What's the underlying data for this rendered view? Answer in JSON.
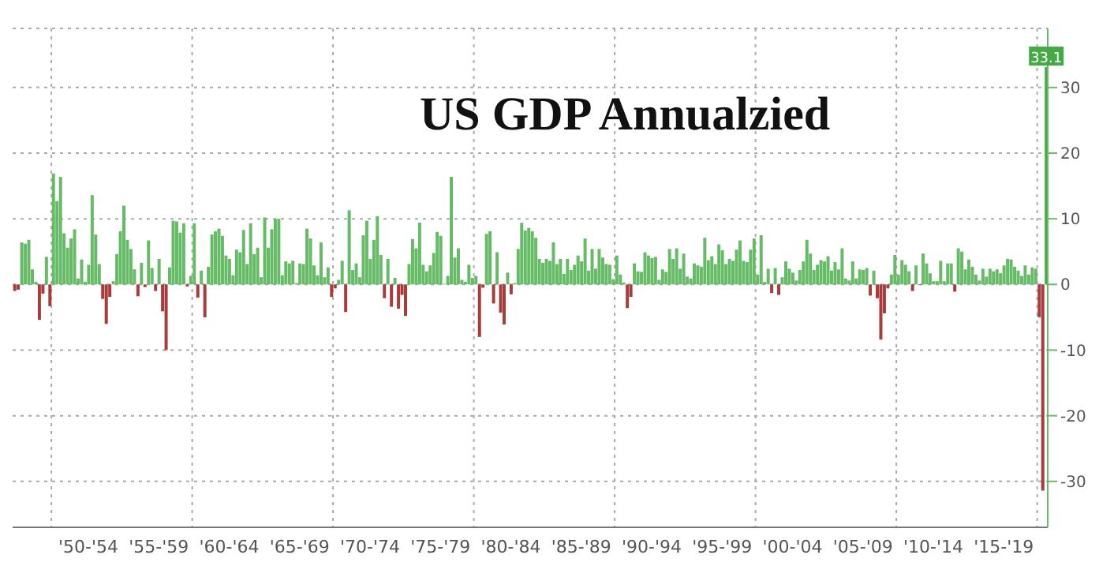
{
  "chart_data": {
    "type": "bar",
    "title": "US GDP Annualzied",
    "categories": [
      null,
      null,
      null,
      null,
      null,
      null,
      null,
      null,
      null,
      null,
      null,
      null,
      null,
      null,
      null,
      null,
      null,
      null,
      null,
      null,
      null,
      "'50-'54",
      null,
      null,
      null,
      null,
      null,
      null,
      null,
      null,
      null,
      null,
      null,
      null,
      null,
      null,
      null,
      null,
      null,
      null,
      null,
      "'55-'59",
      null,
      null,
      null,
      null,
      null,
      null,
      null,
      null,
      null,
      null,
      null,
      null,
      null,
      null,
      null,
      null,
      null,
      null,
      null,
      "'60-'64",
      null,
      null,
      null,
      null,
      null,
      null,
      null,
      null,
      null,
      null,
      null,
      null,
      null,
      null,
      null,
      null,
      null,
      null,
      null,
      "'65-'69",
      null,
      null,
      null,
      null,
      null,
      null,
      null,
      null,
      null,
      null,
      null,
      null,
      null,
      null,
      null,
      null,
      null,
      null,
      null,
      "'70-'74",
      null,
      null,
      null,
      null,
      null,
      null,
      null,
      null,
      null,
      null,
      null,
      null,
      null,
      null,
      null,
      null,
      null,
      null,
      null,
      "'75-'79",
      null,
      null,
      null,
      null,
      null,
      null,
      null,
      null,
      null,
      null,
      null,
      null,
      null,
      null,
      null,
      null,
      null,
      null,
      null,
      "'80-'84",
      null,
      null,
      null,
      null,
      null,
      null,
      null,
      null,
      null,
      null,
      null,
      null,
      null,
      null,
      null,
      null,
      null,
      null,
      null,
      "'85-'89",
      null,
      null,
      null,
      null,
      null,
      null,
      null,
      null,
      null,
      null,
      null,
      null,
      null,
      null,
      null,
      null,
      null,
      null,
      null,
      "'90-'94",
      null,
      null,
      null,
      null,
      null,
      null,
      null,
      null,
      null,
      null,
      null,
      null,
      null,
      null,
      null,
      null,
      null,
      null,
      null,
      "'95-'99",
      null,
      null,
      null,
      null,
      null,
      null,
      null,
      null,
      null,
      null,
      null,
      null,
      null,
      null,
      null,
      null,
      null,
      null,
      null,
      "'00-'04",
      null,
      null,
      null,
      null,
      null,
      null,
      null,
      null,
      null,
      null,
      null,
      null,
      null,
      null,
      null,
      null,
      null,
      null,
      null,
      "'05-'09",
      null,
      null,
      null,
      null,
      null,
      null,
      null,
      null,
      null,
      null,
      null,
      null,
      null,
      null,
      null,
      null,
      null,
      null,
      null,
      "'10-'14",
      null,
      null,
      null,
      null,
      null,
      null,
      null,
      null,
      null,
      null,
      null,
      null,
      null,
      null,
      null,
      null,
      null,
      null,
      null,
      "'15-'19",
      null,
      null,
      null,
      null,
      null,
      null,
      null,
      null,
      null,
      null,
      null,
      null
    ],
    "values": [
      -1.0,
      -0.8,
      6.4,
      6.2,
      6.8,
      2.3,
      0.4,
      -5.4,
      -1.4,
      4.2,
      -3.3,
      16.9,
      12.7,
      16.4,
      7.8,
      5.6,
      7.0,
      8.4,
      0.9,
      3.8,
      0.4,
      3.0,
      13.6,
      7.6,
      3.1,
      -2.2,
      -6.0,
      -1.9,
      0.5,
      4.6,
      8.1,
      12.0,
      6.8,
      5.4,
      2.3,
      -1.8,
      3.3,
      -0.4,
      6.7,
      2.5,
      -1.0,
      3.9,
      -4.1,
      -10.0,
      2.6,
      9.7,
      9.6,
      7.9,
      9.3,
      -0.3,
      1.3,
      9.3,
      -2.0,
      2.1,
      -5.0,
      2.7,
      7.6,
      8.1,
      8.5,
      7.4,
      4.4,
      3.9,
      1.4,
      5.3,
      4.9,
      8.3,
      3.1,
      9.3,
      4.6,
      5.6,
      1.1,
      10.2,
      5.6,
      8.4,
      10.0,
      10.0,
      1.4,
      3.5,
      3.2,
      3.6,
      0.2,
      3.2,
      3.1,
      8.5,
      7.0,
      2.9,
      1.4,
      6.4,
      1.1,
      2.6,
      -1.9,
      -0.6,
      0.7,
      3.6,
      -4.2,
      11.3,
      2.2,
      3.2,
      1.1,
      7.5,
      9.7,
      3.9,
      6.8,
      10.4,
      4.5,
      -2.1,
      3.9,
      -3.4,
      1.0,
      -3.7,
      -1.6,
      -4.8,
      3.1,
      6.9,
      5.5,
      9.4,
      3.0,
      2.0,
      2.9,
      4.8,
      8.0,
      7.4,
      0.1,
      1.3,
      16.4,
      4.1,
      5.5,
      0.7,
      0.4,
      3.0,
      1.0,
      1.3,
      -8.0,
      -0.5,
      7.7,
      8.1,
      -2.9,
      4.9,
      -4.3,
      -6.1,
      1.8,
      -1.5,
      0.2,
      5.4,
      9.4,
      8.2,
      8.6,
      8.1,
      7.1,
      3.9,
      3.3,
      3.9,
      3.6,
      6.4,
      3.1,
      3.9,
      1.6,
      3.9,
      2.2,
      3.0,
      4.4,
      3.5,
      7.0,
      2.1,
      5.4,
      2.4,
      5.4,
      4.1,
      3.1,
      3.0,
      0.8,
      4.4,
      1.5,
      0.3,
      -3.6,
      -1.9,
      3.2,
      2.0,
      1.9,
      4.9,
      4.4,
      4.0,
      4.2,
      0.7,
      2.3,
      1.9,
      5.4,
      3.9,
      5.5,
      2.4,
      4.7,
      1.2,
      0.9,
      3.2,
      2.9,
      2.7,
      7.1,
      3.7,
      4.3,
      3.1,
      6.1,
      5.2,
      3.1,
      3.9,
      3.6,
      5.3,
      6.7,
      3.6,
      3.4,
      5.3,
      7.0,
      1.5,
      7.5,
      0.4,
      2.4,
      -1.3,
      2.5,
      -1.6,
      1.1,
      3.5,
      2.4,
      1.8,
      0.6,
      2.2,
      3.5,
      6.8,
      4.7,
      2.2,
      3.0,
      3.7,
      3.5,
      4.3,
      2.1,
      3.4,
      2.3,
      5.5,
      0.9,
      0.6,
      3.5,
      0.9,
      2.3,
      2.2,
      2.5,
      -1.7,
      2.1,
      -2.1,
      -8.4,
      -4.4,
      -0.6,
      1.5,
      4.5,
      1.5,
      3.7,
      3.0,
      2.0,
      -1.0,
      2.9,
      -0.1,
      4.7,
      3.2,
      1.7,
      0.5,
      0.5,
      3.6,
      0.5,
      3.2,
      3.2,
      -1.1,
      5.5,
      5.0,
      2.3,
      3.8,
      2.7,
      1.5,
      0.6,
      2.4,
      1.2,
      2.4,
      2.0,
      2.3,
      1.7,
      2.9,
      3.9,
      3.8,
      2.7,
      2.1,
      1.3,
      2.9,
      1.5,
      2.6,
      2.4,
      -5.0,
      -31.4,
      33.1
    ],
    "colors": [
      "#a83c3c",
      "#a83c3c",
      "#66bb66",
      "#66bb66",
      "#66bb66",
      "#66bb66",
      "#66bb66",
      "#a83c3c",
      "#a83c3c",
      "#66bb66",
      "#a83c3c",
      "#66bb66",
      "#66bb66",
      "#66bb66",
      "#66bb66",
      "#66bb66",
      "#66bb66",
      "#66bb66",
      "#66bb66",
      "#66bb66",
      "#66bb66",
      "#66bb66",
      "#66bb66",
      "#66bb66",
      "#66bb66",
      "#a83c3c",
      "#a83c3c",
      "#a83c3c",
      "#66bb66",
      "#66bb66",
      "#66bb66",
      "#66bb66",
      "#66bb66",
      "#66bb66",
      "#66bb66",
      "#a83c3c",
      "#66bb66",
      "#a83c3c",
      "#66bb66",
      "#66bb66",
      "#a83c3c",
      "#66bb66",
      "#a83c3c",
      "#a83c3c",
      "#66bb66",
      "#66bb66",
      "#66bb66",
      "#66bb66",
      "#66bb66",
      "#a83c3c",
      "#66bb66",
      "#66bb66",
      "#a83c3c",
      "#66bb66",
      "#a83c3c",
      "#66bb66",
      "#66bb66",
      "#66bb66",
      "#66bb66",
      "#66bb66",
      "#66bb66",
      "#66bb66",
      "#66bb66",
      "#66bb66",
      "#66bb66",
      "#66bb66",
      "#66bb66",
      "#66bb66",
      "#66bb66",
      "#66bb66",
      "#66bb66",
      "#66bb66",
      "#66bb66",
      "#66bb66",
      "#66bb66",
      "#66bb66",
      "#66bb66",
      "#66bb66",
      "#66bb66",
      "#66bb66",
      "#66bb66",
      "#66bb66",
      "#66bb66",
      "#66bb66",
      "#66bb66",
      "#66bb66",
      "#66bb66",
      "#66bb66",
      "#66bb66",
      "#66bb66",
      "#a83c3c",
      "#a83c3c",
      "#66bb66",
      "#66bb66",
      "#a83c3c",
      "#66bb66",
      "#66bb66",
      "#66bb66",
      "#66bb66",
      "#66bb66",
      "#66bb66",
      "#66bb66",
      "#66bb66",
      "#66bb66",
      "#66bb66",
      "#a83c3c",
      "#66bb66",
      "#a83c3c",
      "#66bb66",
      "#a83c3c",
      "#a83c3c",
      "#a83c3c",
      "#66bb66",
      "#66bb66",
      "#66bb66",
      "#66bb66",
      "#66bb66",
      "#66bb66",
      "#66bb66",
      "#66bb66",
      "#66bb66",
      "#66bb66",
      "#66bb66",
      "#66bb66",
      "#66bb66",
      "#66bb66",
      "#66bb66",
      "#66bb66",
      "#66bb66",
      "#66bb66",
      "#66bb66",
      "#66bb66",
      "#a83c3c",
      "#a83c3c",
      "#66bb66",
      "#66bb66",
      "#a83c3c",
      "#66bb66",
      "#a83c3c",
      "#a83c3c",
      "#66bb66",
      "#a83c3c",
      "#66bb66",
      "#66bb66",
      "#66bb66",
      "#66bb66",
      "#66bb66",
      "#66bb66",
      "#66bb66",
      "#66bb66",
      "#66bb66",
      "#66bb66",
      "#66bb66",
      "#66bb66",
      "#66bb66",
      "#66bb66",
      "#66bb66",
      "#66bb66",
      "#66bb66",
      "#66bb66",
      "#66bb66",
      "#66bb66",
      "#66bb66",
      "#66bb66",
      "#66bb66",
      "#66bb66",
      "#66bb66",
      "#66bb66",
      "#66bb66",
      "#66bb66",
      "#66bb66",
      "#66bb66",
      "#66bb66",
      "#66bb66",
      "#a83c3c",
      "#a83c3c",
      "#66bb66",
      "#66bb66",
      "#66bb66",
      "#66bb66",
      "#66bb66",
      "#66bb66",
      "#66bb66",
      "#66bb66",
      "#66bb66",
      "#66bb66",
      "#66bb66",
      "#66bb66",
      "#66bb66",
      "#66bb66",
      "#66bb66",
      "#66bb66",
      "#66bb66",
      "#66bb66",
      "#66bb66",
      "#66bb66",
      "#66bb66",
      "#66bb66",
      "#66bb66",
      "#66bb66",
      "#66bb66",
      "#66bb66",
      "#66bb66",
      "#66bb66",
      "#66bb66",
      "#66bb66",
      "#66bb66",
      "#66bb66",
      "#66bb66",
      "#66bb66",
      "#66bb66",
      "#66bb66",
      "#66bb66",
      "#66bb66",
      "#66bb66",
      "#a83c3c",
      "#66bb66",
      "#a83c3c",
      "#66bb66",
      "#66bb66",
      "#66bb66",
      "#66bb66",
      "#66bb66",
      "#66bb66",
      "#66bb66",
      "#66bb66",
      "#66bb66",
      "#66bb66",
      "#66bb66",
      "#66bb66",
      "#66bb66",
      "#66bb66",
      "#66bb66",
      "#66bb66",
      "#66bb66",
      "#66bb66",
      "#66bb66",
      "#66bb66",
      "#66bb66",
      "#66bb66",
      "#66bb66",
      "#66bb66",
      "#66bb66",
      "#a83c3c",
      "#66bb66",
      "#a83c3c",
      "#a83c3c",
      "#a83c3c",
      "#a83c3c",
      "#66bb66",
      "#66bb66",
      "#66bb66",
      "#66bb66",
      "#66bb66",
      "#66bb66",
      "#a83c3c",
      "#66bb66",
      "#a83c3c",
      "#66bb66",
      "#66bb66",
      "#66bb66",
      "#66bb66",
      "#66bb66",
      "#66bb66",
      "#66bb66",
      "#66bb66",
      "#66bb66",
      "#a83c3c",
      "#66bb66",
      "#66bb66",
      "#66bb66",
      "#66bb66",
      "#66bb66",
      "#66bb66",
      "#66bb66",
      "#66bb66",
      "#66bb66",
      "#66bb66",
      "#66bb66",
      "#66bb66",
      "#66bb66",
      "#66bb66",
      "#66bb66",
      "#66bb66",
      "#66bb66",
      "#66bb66",
      "#66bb66",
      "#66bb66",
      "#66bb66",
      "#66bb66",
      "#66bb66",
      "#a83c3c",
      "#a83c3c",
      "#44aa44"
    ],
    "value_labels": [
      null,
      null,
      null,
      null,
      null,
      null,
      null,
      null,
      null,
      null,
      null,
      null,
      null,
      null,
      null,
      null,
      null,
      null,
      null,
      null,
      null,
      null,
      null,
      null,
      null,
      null,
      null,
      null,
      null,
      null,
      null,
      null,
      null,
      null,
      null,
      null,
      null,
      null,
      null,
      null,
      null,
      null,
      null,
      null,
      null,
      null,
      null,
      null,
      null,
      null,
      null,
      null,
      null,
      null,
      null,
      null,
      null,
      null,
      null,
      null,
      null,
      null,
      null,
      null,
      null,
      null,
      null,
      null,
      null,
      null,
      null,
      null,
      null,
      null,
      null,
      null,
      null,
      null,
      null,
      null,
      null,
      null,
      null,
      null,
      null,
      null,
      null,
      null,
      null,
      null,
      null,
      null,
      null,
      null,
      null,
      null,
      null,
      null,
      null,
      null,
      null,
      null,
      null,
      null,
      null,
      null,
      null,
      null,
      null,
      null,
      null,
      null,
      null,
      null,
      null,
      null,
      null,
      null,
      null,
      null,
      null,
      null,
      null,
      null,
      null,
      null,
      null,
      null,
      null,
      null,
      null,
      null,
      null,
      null,
      null,
      null,
      null,
      null,
      null,
      null,
      null,
      null,
      null,
      null,
      null,
      null,
      null,
      null,
      null,
      null,
      null,
      null,
      null,
      null,
      null,
      null,
      null,
      null,
      null,
      null,
      null,
      null,
      null,
      null,
      null,
      null,
      null,
      null,
      null,
      null,
      null,
      null,
      null,
      null,
      null,
      null,
      null,
      null,
      null,
      null,
      null,
      null,
      null,
      null,
      null,
      null,
      null,
      null,
      null,
      null,
      null,
      null,
      null,
      null,
      null,
      null,
      null,
      null,
      null,
      null,
      null,
      null,
      null,
      null,
      null,
      null,
      null,
      null,
      null,
      null,
      null,
      null,
      null,
      null,
      null,
      null,
      null,
      null,
      null,
      null,
      null,
      null,
      null,
      null,
      null,
      null,
      null,
      null,
      null,
      null,
      null,
      null,
      null,
      null,
      null,
      null,
      null,
      null,
      null,
      null,
      null,
      null,
      null,
      null,
      null,
      null,
      null,
      null,
      null,
      null,
      null,
      null,
      null,
      null,
      null,
      null,
      null,
      null,
      null,
      null,
      null,
      null,
      null,
      null,
      null,
      null,
      null,
      null,
      null,
      null,
      null,
      null,
      null,
      null,
      null,
      null,
      null,
      null,
      null,
      null,
      null,
      null,
      null,
      null,
      null,
      null,
      null,
      null,
      null,
      null,
      null,
      null,
      null,
      "33.1"
    ],
    "ylim": [
      -37,
      39
    ],
    "yticks": [
      -30,
      -20,
      -10,
      0,
      10,
      20,
      30
    ],
    "grid": true
  }
}
